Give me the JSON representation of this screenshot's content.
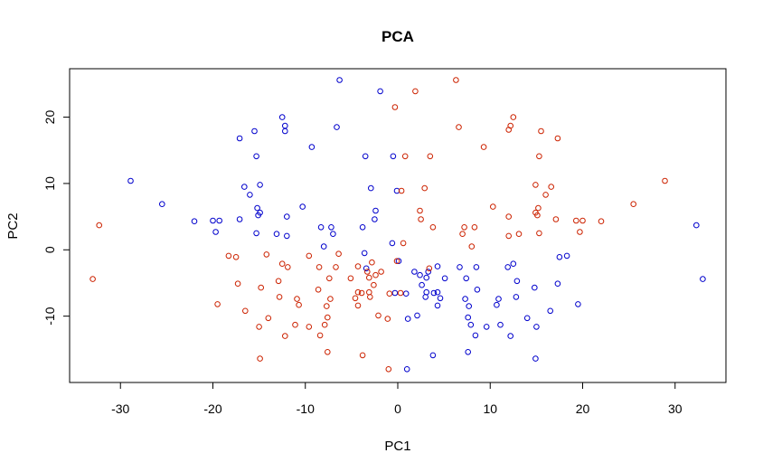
{
  "chart_data": {
    "type": "scatter",
    "title": "PCA",
    "xlabel": "PC1",
    "ylabel": "PC2",
    "xlim": [
      -35.5,
      35.5
    ],
    "ylim": [
      -20,
      27.3
    ],
    "xticks": [
      -30,
      -20,
      -10,
      0,
      10,
      20,
      30
    ],
    "yticks": [
      -10,
      0,
      10,
      20
    ],
    "xtick_labels": [
      "-30",
      "-20",
      "-10",
      "0",
      "10",
      "20",
      "30"
    ],
    "ytick_labels": [
      "-10",
      "0",
      "10",
      "20"
    ],
    "grid": false,
    "legend": "none",
    "marker": "open-circle",
    "series": [
      {
        "color": "#0000cc",
        "points": [
          [
            -6.3,
            25.6
          ],
          [
            -1.9,
            23.9
          ],
          [
            -12.5,
            20.0
          ],
          [
            -12.2,
            18.7
          ],
          [
            -12.2,
            17.9
          ],
          [
            -6.6,
            18.5
          ],
          [
            -15.5,
            17.9
          ],
          [
            -17.1,
            16.8
          ],
          [
            -9.3,
            15.5
          ],
          [
            -15.3,
            14.1
          ],
          [
            -3.5,
            14.1
          ],
          [
            -0.5,
            14.1
          ],
          [
            -28.9,
            10.4
          ],
          [
            -25.5,
            6.9
          ],
          [
            -16.6,
            9.5
          ],
          [
            -16.0,
            8.3
          ],
          [
            -14.9,
            9.8
          ],
          [
            -2.9,
            9.3
          ],
          [
            -0.1,
            8.9
          ],
          [
            -10.3,
            6.5
          ],
          [
            -15.2,
            6.3
          ],
          [
            -14.9,
            5.6
          ],
          [
            -15.1,
            5.2
          ],
          [
            -12.0,
            5.0
          ],
          [
            -2.4,
            5.9
          ],
          [
            -2.5,
            4.6
          ],
          [
            -22.0,
            4.3
          ],
          [
            -20.0,
            4.4
          ],
          [
            -19.3,
            4.4
          ],
          [
            -17.1,
            4.6
          ],
          [
            -7.2,
            3.4
          ],
          [
            -8.3,
            3.4
          ],
          [
            -3.8,
            3.4
          ],
          [
            -19.7,
            2.7
          ],
          [
            -15.3,
            2.5
          ],
          [
            -13.1,
            2.4
          ],
          [
            -12.0,
            2.1
          ],
          [
            -7.0,
            2.4
          ],
          [
            -8.0,
            0.5
          ],
          [
            -0.6,
            1.0
          ],
          [
            -3.6,
            -0.5
          ],
          [
            -3.4,
            -2.8
          ],
          [
            0.1,
            -1.7
          ],
          [
            1.8,
            -3.3
          ],
          [
            3.3,
            -3.3
          ],
          [
            4.3,
            -2.5
          ],
          [
            6.7,
            -2.6
          ],
          [
            8.5,
            -2.6
          ],
          [
            11.9,
            -2.6
          ],
          [
            12.5,
            -2.1
          ],
          [
            2.4,
            -3.8
          ],
          [
            3.1,
            -4.2
          ],
          [
            5.1,
            -4.3
          ],
          [
            7.4,
            -4.3
          ],
          [
            12.9,
            -4.7
          ],
          [
            2.6,
            -5.3
          ],
          [
            3.1,
            -6.4
          ],
          [
            3.9,
            -6.5
          ],
          [
            4.3,
            -6.4
          ],
          [
            8.6,
            -6.0
          ],
          [
            14.8,
            -5.7
          ],
          [
            17.3,
            -5.1
          ],
          [
            -0.3,
            -6.5
          ],
          [
            0.9,
            -6.6
          ],
          [
            3.0,
            -7.1
          ],
          [
            4.6,
            -7.3
          ],
          [
            7.3,
            -7.4
          ],
          [
            10.9,
            -7.4
          ],
          [
            12.8,
            -7.1
          ],
          [
            4.3,
            -8.4
          ],
          [
            7.7,
            -8.5
          ],
          [
            10.7,
            -8.3
          ],
          [
            16.5,
            -9.2
          ],
          [
            19.5,
            -8.2
          ],
          [
            1.1,
            -10.4
          ],
          [
            2.1,
            -9.9
          ],
          [
            7.6,
            -10.2
          ],
          [
            7.9,
            -11.3
          ],
          [
            9.6,
            -11.6
          ],
          [
            11.1,
            -11.3
          ],
          [
            14.0,
            -10.3
          ],
          [
            15.0,
            -11.6
          ],
          [
            8.4,
            -12.9
          ],
          [
            12.2,
            -13.0
          ],
          [
            3.8,
            -15.9
          ],
          [
            7.6,
            -15.4
          ],
          [
            14.9,
            -16.4
          ],
          [
            1.0,
            -18.0
          ],
          [
            18.3,
            -0.9
          ],
          [
            17.5,
            -1.1
          ],
          [
            32.3,
            3.7
          ],
          [
            33.0,
            -4.4
          ]
        ]
      },
      {
        "color": "#cc2200",
        "points": [
          [
            6.3,
            25.6
          ],
          [
            1.9,
            23.9
          ],
          [
            12.5,
            20.0
          ],
          [
            12.2,
            18.7
          ],
          [
            12.0,
            18.1
          ],
          [
            6.6,
            18.5
          ],
          [
            15.5,
            17.9
          ],
          [
            17.3,
            16.8
          ],
          [
            9.3,
            15.5
          ],
          [
            15.3,
            14.1
          ],
          [
            3.5,
            14.1
          ],
          [
            0.8,
            14.1
          ],
          [
            28.9,
            10.4
          ],
          [
            25.5,
            6.9
          ],
          [
            16.6,
            9.5
          ],
          [
            16.0,
            8.3
          ],
          [
            14.9,
            9.8
          ],
          [
            2.9,
            9.3
          ],
          [
            0.4,
            8.9
          ],
          [
            10.3,
            6.5
          ],
          [
            15.2,
            6.3
          ],
          [
            14.9,
            5.6
          ],
          [
            15.1,
            5.2
          ],
          [
            12.0,
            5.0
          ],
          [
            2.4,
            5.9
          ],
          [
            2.5,
            4.6
          ],
          [
            22.0,
            4.3
          ],
          [
            20.0,
            4.4
          ],
          [
            19.3,
            4.4
          ],
          [
            17.1,
            4.6
          ],
          [
            7.2,
            3.4
          ],
          [
            8.3,
            3.4
          ],
          [
            3.8,
            3.4
          ],
          [
            19.7,
            2.7
          ],
          [
            15.3,
            2.5
          ],
          [
            13.1,
            2.4
          ],
          [
            12.0,
            2.1
          ],
          [
            7.0,
            2.4
          ],
          [
            8.0,
            0.5
          ],
          [
            0.6,
            1.0
          ],
          [
            -0.3,
            21.5
          ],
          [
            3.4,
            -2.8
          ],
          [
            -0.1,
            -1.7
          ],
          [
            -1.8,
            -3.3
          ],
          [
            -3.3,
            -3.3
          ],
          [
            -4.3,
            -2.5
          ],
          [
            -6.7,
            -2.6
          ],
          [
            -8.5,
            -2.6
          ],
          [
            -11.9,
            -2.6
          ],
          [
            -12.5,
            -2.1
          ],
          [
            -2.4,
            -3.8
          ],
          [
            -3.1,
            -4.2
          ],
          [
            -5.1,
            -4.3
          ],
          [
            -7.4,
            -4.3
          ],
          [
            -12.9,
            -4.7
          ],
          [
            -2.6,
            -5.3
          ],
          [
            -3.1,
            -6.4
          ],
          [
            -3.9,
            -6.5
          ],
          [
            -4.3,
            -6.4
          ],
          [
            -8.6,
            -6.0
          ],
          [
            -14.8,
            -5.7
          ],
          [
            -17.3,
            -5.1
          ],
          [
            0.3,
            -6.5
          ],
          [
            -0.9,
            -6.6
          ],
          [
            -3.0,
            -7.1
          ],
          [
            -4.6,
            -7.3
          ],
          [
            -7.3,
            -7.4
          ],
          [
            -10.9,
            -7.4
          ],
          [
            -12.8,
            -7.1
          ],
          [
            -4.3,
            -8.4
          ],
          [
            -7.7,
            -8.5
          ],
          [
            -10.7,
            -8.3
          ],
          [
            -16.5,
            -9.2
          ],
          [
            -19.5,
            -8.2
          ],
          [
            -1.1,
            -10.4
          ],
          [
            -2.1,
            -9.9
          ],
          [
            -7.6,
            -10.2
          ],
          [
            -7.9,
            -11.3
          ],
          [
            -9.6,
            -11.6
          ],
          [
            -11.1,
            -11.3
          ],
          [
            -14.0,
            -10.3
          ],
          [
            -15.0,
            -11.6
          ],
          [
            -8.4,
            -12.9
          ],
          [
            -12.2,
            -13.0
          ],
          [
            -3.8,
            -15.9
          ],
          [
            -7.6,
            -15.4
          ],
          [
            -14.9,
            -16.4
          ],
          [
            -1.0,
            -18.0
          ],
          [
            -18.3,
            -0.9
          ],
          [
            -17.5,
            -1.1
          ],
          [
            -32.3,
            3.7
          ],
          [
            -33.0,
            -4.4
          ],
          [
            -14.2,
            -0.7
          ],
          [
            -9.6,
            -0.9
          ],
          [
            -6.4,
            -0.6
          ],
          [
            -2.8,
            -1.9
          ]
        ]
      }
    ]
  }
}
